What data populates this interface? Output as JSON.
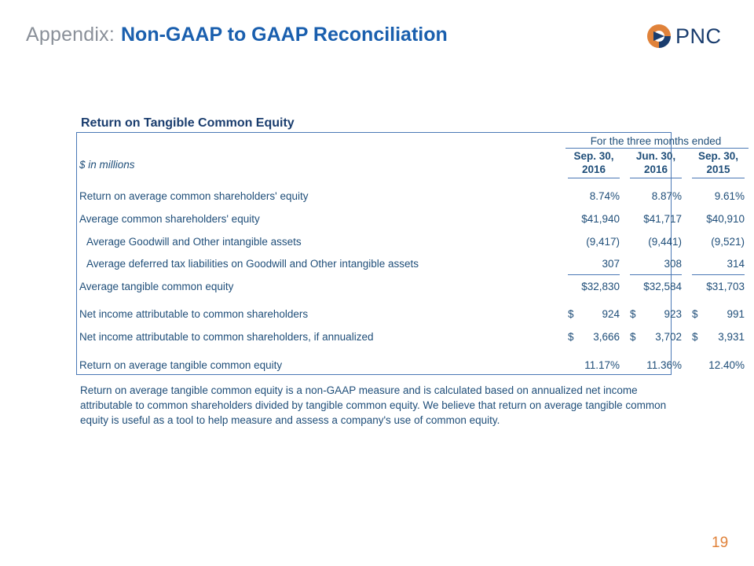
{
  "header": {
    "prefix": "Appendix:",
    "title": "Non-GAAP to GAAP Reconciliation",
    "logo_text": "PNC"
  },
  "section": {
    "title": "Return on Tangible Common Equity"
  },
  "table": {
    "period_header": "For the three months ended",
    "units": "$ in millions",
    "columns": [
      {
        "line1": "Sep. 30,",
        "line2": "2016"
      },
      {
        "line1": "Jun. 30,",
        "line2": "2016"
      },
      {
        "line1": "Sep. 30,",
        "line2": "2015"
      }
    ],
    "rows": [
      {
        "label": "Return on average common shareholders' equity",
        "values": [
          "8.74%",
          "8.87%",
          "9.61%"
        ]
      },
      {
        "label": "Average common shareholders' equity",
        "values": [
          "$41,940",
          "$41,717",
          "$40,910"
        ]
      },
      {
        "label": "Average Goodwill and Other intangible assets",
        "values": [
          "(9,417)",
          "(9,441)",
          "(9,521)"
        ]
      },
      {
        "label": "Average deferred tax liabilities on Goodwill and Other intangible assets",
        "values": [
          "307",
          "308",
          "314"
        ]
      },
      {
        "label": "Average tangible common equity",
        "values": [
          "$32,830",
          "$32,584",
          "$31,703"
        ]
      },
      {
        "label": "Net income attributable to common shareholders",
        "currency": [
          "$",
          "$",
          "$"
        ],
        "values": [
          "924",
          "923",
          "991"
        ]
      },
      {
        "label": "Net income attributable to common shareholders, if annualized",
        "currency": [
          "$",
          "$",
          "$"
        ],
        "values": [
          "3,666",
          "3,702",
          "3,931"
        ]
      },
      {
        "label": "Return on average tangible common equity",
        "values": [
          "11.17%",
          "11.36%",
          "12.40%"
        ]
      }
    ]
  },
  "note": "Return on average tangible common equity is a non-GAAP measure and is calculated based on annualized net income attributable to common shareholders divided by tangible common equity.  We believe that return on average tangible common equity is useful as a tool to help measure and assess a company's use of common equity.",
  "page_number": "19",
  "colors": {
    "title_blue": "#1a5fae",
    "text_blue": "#1f4e79",
    "border_blue": "#4a78b5",
    "accent_orange": "#e0823a",
    "gray": "#8a9099"
  }
}
